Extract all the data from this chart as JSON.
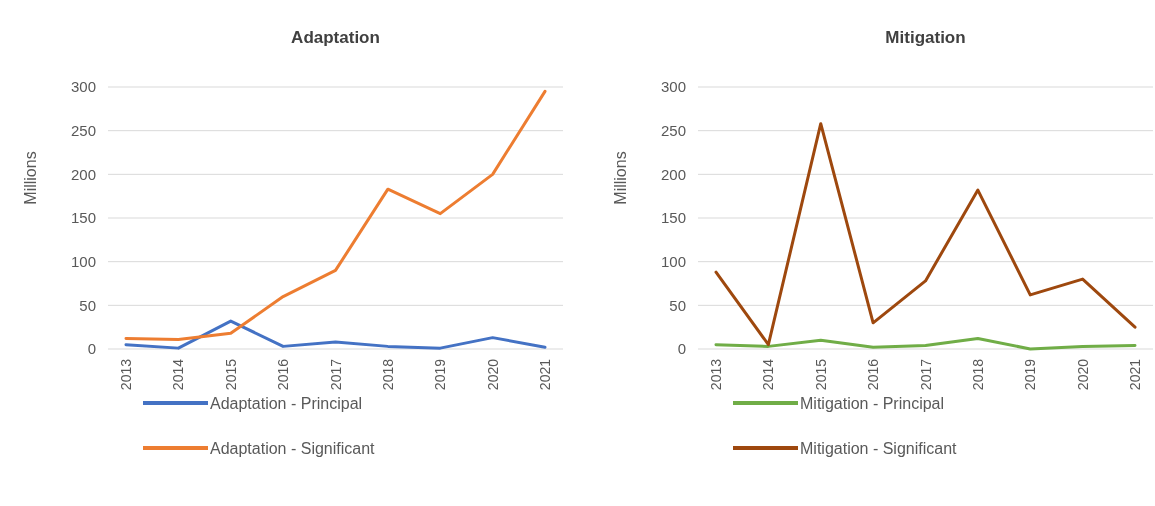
{
  "chart_data": [
    {
      "type": "line",
      "title": "Adaptation",
      "ylabel": "Millions",
      "categories": [
        "2013",
        "2014",
        "2015",
        "2016",
        "2017",
        "2018",
        "2019",
        "2020",
        "2021"
      ],
      "ylim": [
        0,
        300
      ],
      "yticks": [
        0,
        50,
        100,
        150,
        200,
        250,
        300
      ],
      "grid": "y",
      "legend": "bottom",
      "series": [
        {
          "name": "Adaptation - Principal",
          "color": "#4472c4",
          "values": [
            5,
            1,
            32,
            3,
            8,
            3,
            1,
            13,
            2
          ]
        },
        {
          "name": "Adaptation - Significant",
          "color": "#ed7d31",
          "values": [
            12,
            11,
            18,
            60,
            90,
            183,
            155,
            200,
            295
          ]
        }
      ]
    },
    {
      "type": "line",
      "title": "Mitigation",
      "ylabel": "Millions",
      "categories": [
        "2013",
        "2014",
        "2015",
        "2016",
        "2017",
        "2018",
        "2019",
        "2020",
        "2021"
      ],
      "ylim": [
        0,
        300
      ],
      "yticks": [
        0,
        50,
        100,
        150,
        200,
        250,
        300
      ],
      "grid": "y",
      "legend": "bottom",
      "series": [
        {
          "name": "Mitigation - Principal",
          "color": "#70ad47",
          "values": [
            5,
            3,
            10,
            2,
            4,
            12,
            0,
            3,
            4
          ]
        },
        {
          "name": "Mitigation - Significant",
          "color": "#9e480e",
          "values": [
            88,
            5,
            258,
            30,
            78,
            182,
            62,
            80,
            25
          ]
        }
      ]
    }
  ]
}
